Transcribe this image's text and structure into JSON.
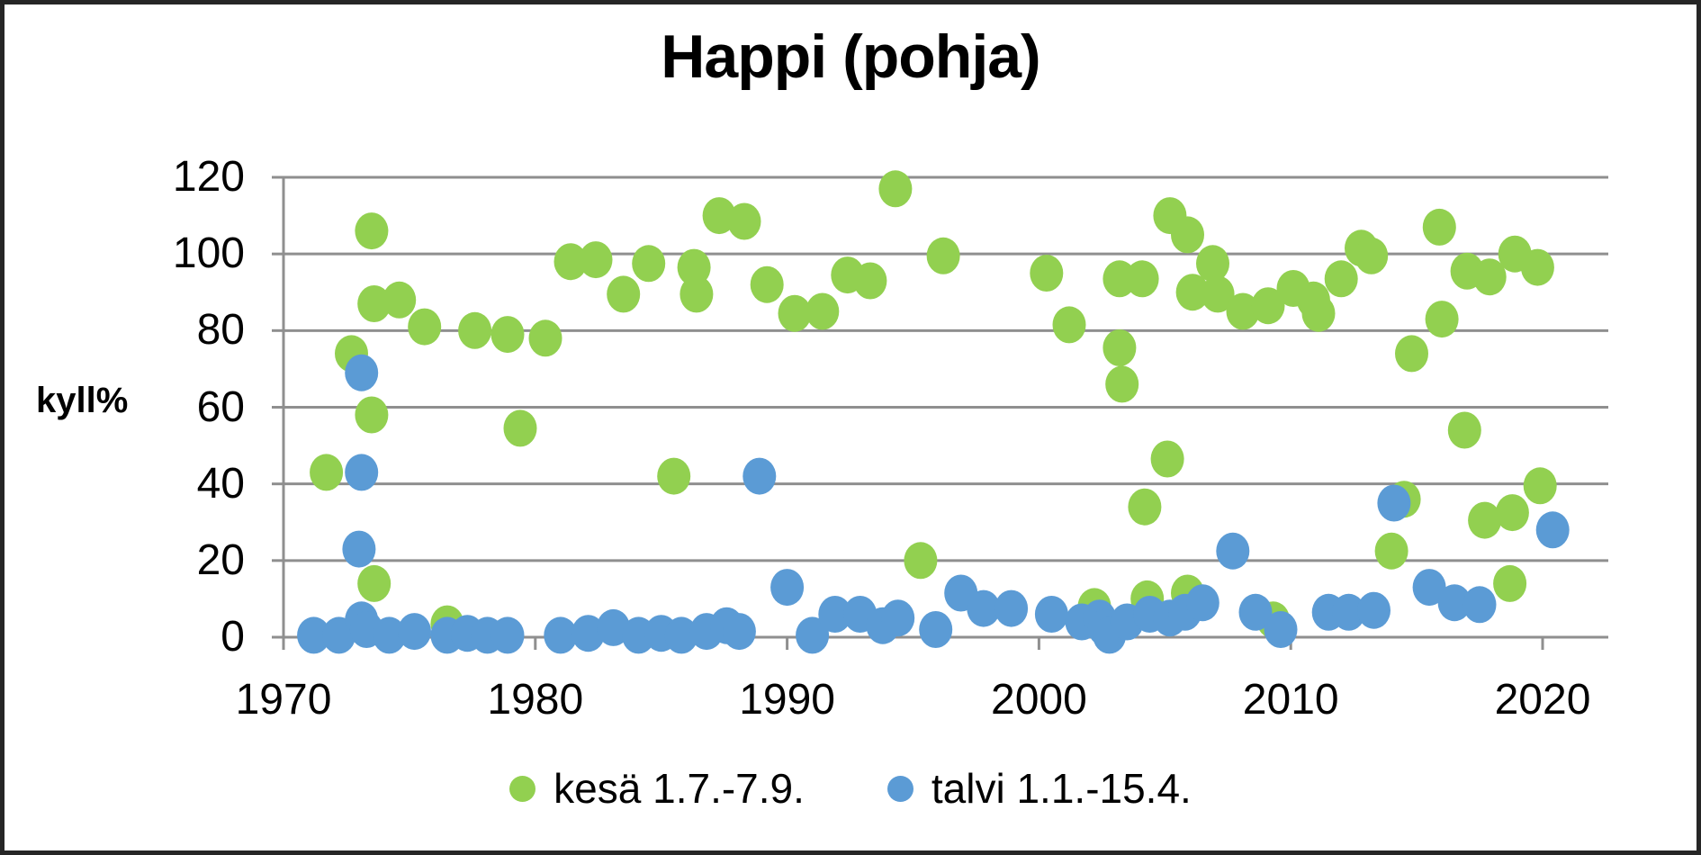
{
  "chart_data": {
    "type": "scatter",
    "title": "Happi (pohja)",
    "ylabel": "kyll%",
    "xlabel": "",
    "ylim": [
      0,
      120
    ],
    "xlim": [
      1970,
      2022.5
    ],
    "y_ticks": [
      120,
      100,
      80,
      60,
      40,
      20,
      0
    ],
    "x_ticks": [
      1970,
      1980,
      1990,
      2000,
      2010,
      2020
    ],
    "grid": "horizontal",
    "legend_position": "bottom-center",
    "marker": "circle",
    "series": [
      {
        "name": "kesä 1.7.-7.9.",
        "color": "#92D050",
        "points": [
          [
            1971.7,
            43
          ],
          [
            1972.7,
            74
          ],
          [
            1973.5,
            106
          ],
          [
            1973.5,
            58
          ],
          [
            1973.6,
            14
          ],
          [
            1973.6,
            87
          ],
          [
            1974.6,
            88
          ],
          [
            1975.6,
            81
          ],
          [
            1976.5,
            3.5
          ],
          [
            1977.6,
            80
          ],
          [
            1978.9,
            79
          ],
          [
            1979.4,
            54.5
          ],
          [
            1980.4,
            78
          ],
          [
            1981.4,
            98
          ],
          [
            1982.4,
            98.5
          ],
          [
            1983.5,
            89.5
          ],
          [
            1984.5,
            97.5
          ],
          [
            1985.5,
            42
          ],
          [
            1986.3,
            96.5
          ],
          [
            1986.4,
            89.5
          ],
          [
            1987.3,
            110
          ],
          [
            1988.3,
            108.5
          ],
          [
            1989.2,
            92
          ],
          [
            1990.3,
            84.5
          ],
          [
            1991.4,
            85
          ],
          [
            1992.4,
            94.5
          ],
          [
            1993.3,
            93
          ],
          [
            1994.3,
            117
          ],
          [
            1995.3,
            20
          ],
          [
            1996.2,
            99.5
          ],
          [
            2000.3,
            95
          ],
          [
            2001.2,
            81.5
          ],
          [
            2002.2,
            8
          ],
          [
            2003.2,
            93.5
          ],
          [
            2003.2,
            75.5
          ],
          [
            2003.3,
            66
          ],
          [
            2004.1,
            93.5
          ],
          [
            2004.2,
            34
          ],
          [
            2004.3,
            10
          ],
          [
            2005.1,
            46.5
          ],
          [
            2005.2,
            110
          ],
          [
            2005.9,
            105
          ],
          [
            2005.9,
            11.5
          ],
          [
            2006.1,
            90
          ],
          [
            2006.9,
            97.5
          ],
          [
            2007.1,
            89.5
          ],
          [
            2008.1,
            85
          ],
          [
            2009.1,
            86.5
          ],
          [
            2009.3,
            4.5
          ],
          [
            2010.1,
            91
          ],
          [
            2010.9,
            88
          ],
          [
            2011.1,
            84.5
          ],
          [
            2012.0,
            93.5
          ],
          [
            2012.8,
            101.5
          ],
          [
            2013.2,
            99.5
          ],
          [
            2014.0,
            22.5
          ],
          [
            2014.5,
            36
          ],
          [
            2014.8,
            74
          ],
          [
            2015.9,
            107
          ],
          [
            2016.0,
            83
          ],
          [
            2016.9,
            54
          ],
          [
            2017.0,
            95.5
          ],
          [
            2017.7,
            30.5
          ],
          [
            2017.9,
            94
          ],
          [
            2018.7,
            14
          ],
          [
            2018.8,
            32.5
          ],
          [
            2018.9,
            100
          ],
          [
            2019.8,
            96.5
          ],
          [
            2019.9,
            39.5
          ]
        ]
      },
      {
        "name": "talvi 1.1.-15.4.",
        "color": "#5B9BD5",
        "points": [
          [
            1971.2,
            0.5
          ],
          [
            1972.2,
            0.5
          ],
          [
            1973.0,
            23
          ],
          [
            1973.1,
            43
          ],
          [
            1973.1,
            69
          ],
          [
            1973.1,
            4.5
          ],
          [
            1973.3,
            2
          ],
          [
            1974.2,
            0.5
          ],
          [
            1975.2,
            1.5
          ],
          [
            1976.5,
            0.5
          ],
          [
            1977.3,
            1
          ],
          [
            1978.1,
            0.5
          ],
          [
            1978.9,
            0.5
          ],
          [
            1981.0,
            0.5
          ],
          [
            1982.1,
            1
          ],
          [
            1983.1,
            2.5
          ],
          [
            1984.1,
            0.5
          ],
          [
            1985.0,
            1
          ],
          [
            1985.8,
            0.5
          ],
          [
            1986.8,
            1.5
          ],
          [
            1987.6,
            3
          ],
          [
            1988.1,
            1.5
          ],
          [
            1988.9,
            42
          ],
          [
            1990.0,
            13
          ],
          [
            1991.0,
            0.5
          ],
          [
            1991.9,
            6
          ],
          [
            1992.9,
            6
          ],
          [
            1993.8,
            3
          ],
          [
            1994.4,
            5
          ],
          [
            1995.9,
            2
          ],
          [
            1996.9,
            11.5
          ],
          [
            1997.8,
            7.5
          ],
          [
            1998.9,
            7.5
          ],
          [
            2000.5,
            6
          ],
          [
            2001.7,
            4
          ],
          [
            2002.4,
            5
          ],
          [
            2002.6,
            2.5
          ],
          [
            2002.8,
            0.5
          ],
          [
            2003.5,
            4
          ],
          [
            2004.4,
            6
          ],
          [
            2005.2,
            5
          ],
          [
            2005.8,
            6.5
          ],
          [
            2006.5,
            9
          ],
          [
            2007.7,
            22.5
          ],
          [
            2008.6,
            6.5
          ],
          [
            2009.6,
            2
          ],
          [
            2011.5,
            6.5
          ],
          [
            2012.3,
            6.5
          ],
          [
            2013.3,
            7
          ],
          [
            2014.1,
            35
          ],
          [
            2015.5,
            13
          ],
          [
            2016.5,
            9
          ],
          [
            2017.5,
            8.5
          ],
          [
            2020.4,
            28
          ]
        ]
      }
    ]
  },
  "colors": {
    "summer": "#92D050",
    "winter": "#5B9BD5",
    "gridline": "#8F8F8F",
    "axis": "#8F8F8F",
    "frame": "#262626",
    "text": "#000000",
    "background": "#FFFFFF"
  }
}
